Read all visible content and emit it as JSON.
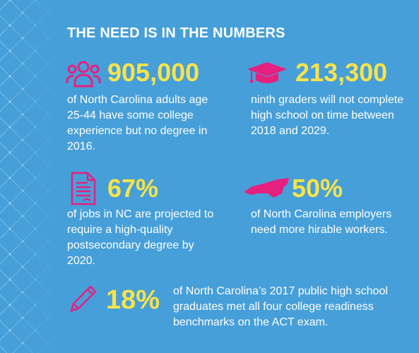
{
  "title": "THE NEED IS IN THE NUMBERS",
  "stats": [
    {
      "value": "905,000",
      "description": "of North Carolina adults age 25-44 have some college experience but no degree in 2016."
    },
    {
      "value": "213,300",
      "description": "ninth graders will not complete high school on time between 2018 and 2029."
    },
    {
      "value": "67%",
      "description": "of jobs in NC are projected to require a high-quality postsecondary degree by 2020."
    },
    {
      "value": "50%",
      "description": "of North Carolina employers need more hirable workers."
    },
    {
      "value": "18%",
      "description": "of North Carolina’s 2017 public high school graduates met all four college readiness benchmarks on the ACT exam."
    }
  ]
}
